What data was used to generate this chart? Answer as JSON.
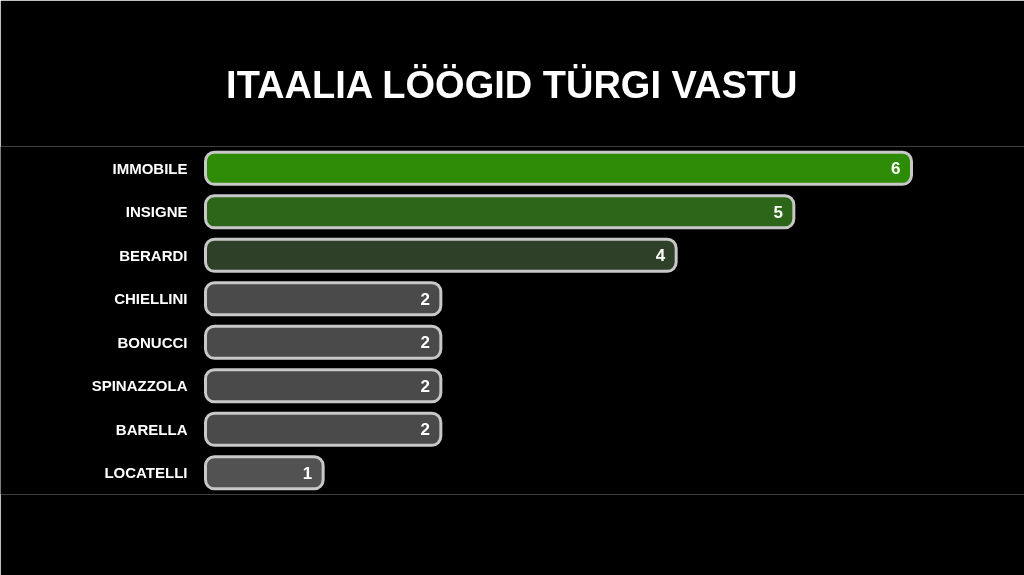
{
  "chart_data": {
    "type": "bar",
    "orientation": "horizontal",
    "title": "ITAALIA LÖÖGID TÜRGI VASTU",
    "categories": [
      "IMMOBILE",
      "INSIGNE",
      "BERARDI",
      "CHIELLINI",
      "BONUCCI",
      "SPINAZZOLA",
      "BARELLA",
      "LOCATELLI"
    ],
    "values": [
      6,
      5,
      4,
      2,
      2,
      2,
      2,
      1
    ],
    "colors": [
      "#2e8b05",
      "#2e6619",
      "#2f4028",
      "#4a4a4a",
      "#4a4a4a",
      "#4a4a4a",
      "#4a4a4a",
      "#525252"
    ],
    "data_labels": true
  }
}
